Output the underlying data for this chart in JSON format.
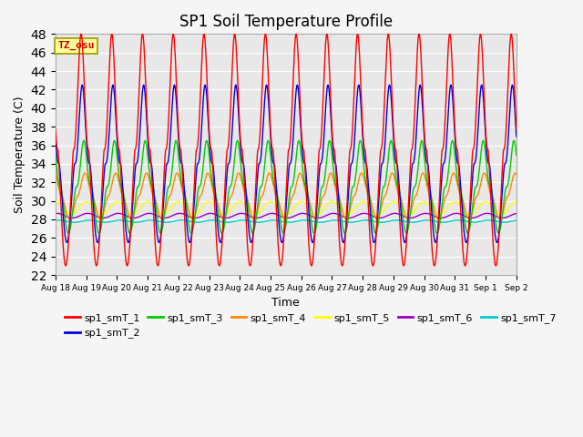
{
  "title": "SP1 Soil Temperature Profile",
  "xlabel": "Time",
  "ylabel": "Soil Temperature (C)",
  "ylim": [
    22,
    48
  ],
  "yticks": [
    22,
    24,
    26,
    28,
    30,
    32,
    34,
    36,
    38,
    40,
    42,
    44,
    46,
    48
  ],
  "series_colors": {
    "sp1_smT_1": "#ff0000",
    "sp1_smT_2": "#0000dd",
    "sp1_smT_3": "#00cc00",
    "sp1_smT_4": "#ff8800",
    "sp1_smT_5": "#ffff00",
    "sp1_smT_6": "#9900cc",
    "sp1_smT_7": "#00cccc"
  },
  "annotation_text": "TZ_osu",
  "annotation_color": "#cc0000",
  "annotation_bg": "#ffff99",
  "annotation_border": "#999900",
  "plot_bg": "#e8e8e8",
  "grid_color": "#ffffff",
  "fig_bg": "#f5f5f5",
  "n_days": 15,
  "start_day": 18,
  "points_per_day": 144,
  "s1_base": 35.5,
  "s1_amp": 12.5,
  "s2_base": 34.0,
  "s2_amp": 8.5,
  "s3_base": 31.5,
  "s3_amp": 5.0,
  "s4_base": 30.5,
  "s4_amp": 2.5,
  "s5_base": 29.2,
  "s5_amp": 0.7,
  "s6_base": 28.4,
  "s6_amp": 0.25,
  "s7_base": 27.8,
  "s7_amp": 0.12,
  "lw": 1.0
}
